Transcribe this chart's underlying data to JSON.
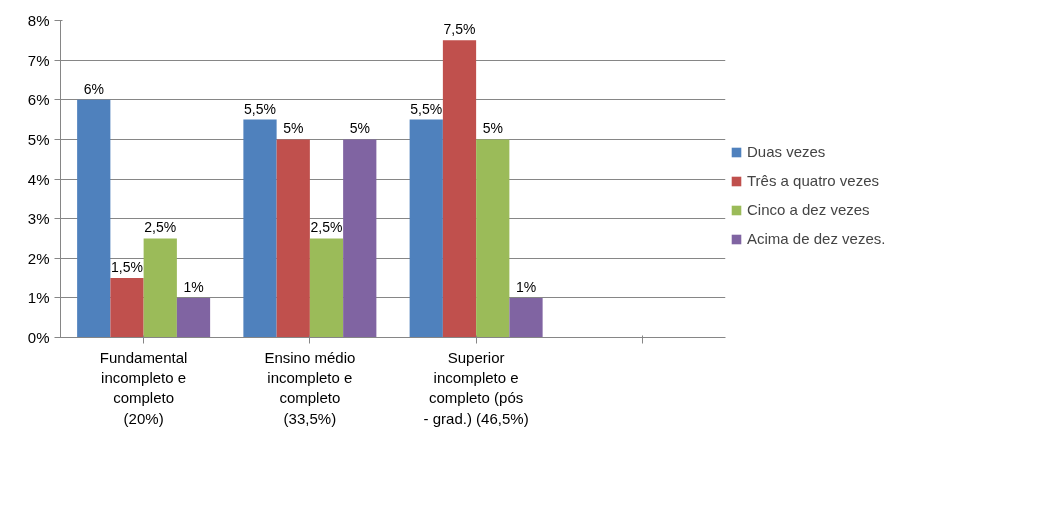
{
  "chart_data": {
    "type": "bar",
    "categories": [
      "Fundamental\nincompleto e\ncompleto\n(20%)",
      "Ensino médio\nincompleto e\ncompleto\n(33,5%)",
      "Superior\nincompleto e\ncompleto (pós\n- grad.) (46,5%)",
      null
    ],
    "series": [
      {
        "name": "Duas vezes",
        "color": "#4f81bd",
        "values": [
          6,
          5.5,
          5.5,
          null
        ],
        "value_labels": [
          "6%",
          "5,5%",
          "5,5%",
          null
        ]
      },
      {
        "name": "Três a quatro vezes",
        "color": "#c0504d",
        "values": [
          1.5,
          5,
          7.5,
          null
        ],
        "value_labels": [
          "1,5%",
          "5%",
          "7,5%",
          null
        ]
      },
      {
        "name": "Cinco a dez vezes",
        "color": "#9bbb59",
        "values": [
          2.5,
          2.5,
          5,
          null
        ],
        "value_labels": [
          "2,5%",
          "2,5%",
          "5%",
          null
        ]
      },
      {
        "name": "Acima de dez vezes.",
        "color": "#8064a2",
        "values": [
          1,
          5,
          1,
          null
        ],
        "value_labels": [
          "1%",
          "5%",
          "1%",
          null
        ]
      }
    ],
    "ylim": [
      0,
      8
    ],
    "yticks": [
      {
        "value": 0,
        "label": "0%"
      },
      {
        "value": 1,
        "label": "1%"
      },
      {
        "value": 2,
        "label": "2%"
      },
      {
        "value": 3,
        "label": "3%"
      },
      {
        "value": 4,
        "label": "4%"
      },
      {
        "value": 5,
        "label": "5%"
      },
      {
        "value": 6,
        "label": "6%"
      },
      {
        "value": 7,
        "label": "7%"
      },
      {
        "value": 8,
        "label": "8%"
      }
    ],
    "grid": "y",
    "legend": "right"
  }
}
